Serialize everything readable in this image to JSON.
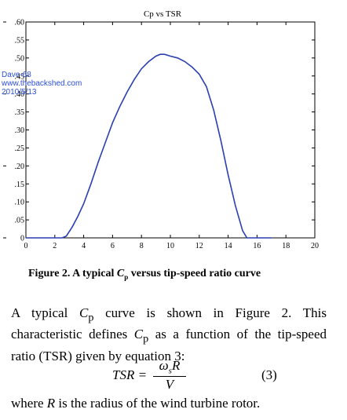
{
  "chart_data": {
    "type": "line",
    "title": "Cp vs TSR",
    "xlabel": "",
    "ylabel": "",
    "xlim": [
      0,
      20
    ],
    "ylim": [
      0,
      0.6
    ],
    "x_ticks": [
      0,
      2,
      4,
      6,
      8,
      10,
      12,
      14,
      16,
      18,
      20
    ],
    "y_ticks": [
      0,
      0.05,
      0.1,
      0.15,
      0.2,
      0.25,
      0.3,
      0.35,
      0.4,
      0.45,
      0.5,
      0.55,
      0.6
    ],
    "y_tick_labels": [
      "0",
      ".05",
      ".10",
      ".15",
      ".20",
      ".25",
      ".30",
      ".35",
      ".40",
      ".45",
      ".50",
      ".55",
      ".60"
    ],
    "grid": false,
    "line_color": "#2a3fb0",
    "series": [
      {
        "x": [
          0,
          2.5,
          2.8,
          3.2,
          3.6,
          4.0,
          4.5,
          5.0,
          5.5,
          6.0,
          6.5,
          7.0,
          7.5,
          8.0,
          8.5,
          9.0,
          9.3,
          9.6,
          10.0,
          10.5,
          11.0,
          11.5,
          12.0,
          12.5,
          13.0,
          13.5,
          14.0,
          14.5,
          15.0,
          15.3,
          17.0
        ],
        "y": [
          0,
          0,
          0.005,
          0.03,
          0.06,
          0.095,
          0.15,
          0.21,
          0.265,
          0.32,
          0.365,
          0.405,
          0.44,
          0.47,
          0.49,
          0.505,
          0.51,
          0.51,
          0.505,
          0.5,
          0.49,
          0.475,
          0.455,
          0.42,
          0.355,
          0.27,
          0.175,
          0.09,
          0.02,
          0,
          0
        ]
      }
    ]
  },
  "watermark": {
    "line1": "Dave-68",
    "line2": "www.thebackshed.com",
    "line3": "2010/5/13",
    "color": "#2b4fd6"
  },
  "caption": {
    "prefix": "Figure 2.  A typical ",
    "symbol": "C",
    "sub": "p",
    "suffix": " versus tip-speed ratio curve"
  },
  "paragraph": {
    "t1": "A typical ",
    "sym1": "C",
    "sub1": "p",
    "t2": " curve is shown in Figure 2. This characteristic defines ",
    "sym2": "C",
    "sub2": "p",
    "t3": " as a function of the tip-speed ratio (TSR) given by equation 3:"
  },
  "equation": {
    "lhs": "TSR =",
    "num_sym": "ω",
    "num_sub": "s",
    "num_rest": "R",
    "den": "V",
    "number": "(3)"
  },
  "closing": {
    "t1": "where ",
    "sym": "R",
    "t2": " is the radius of the wind turbine rotor."
  }
}
